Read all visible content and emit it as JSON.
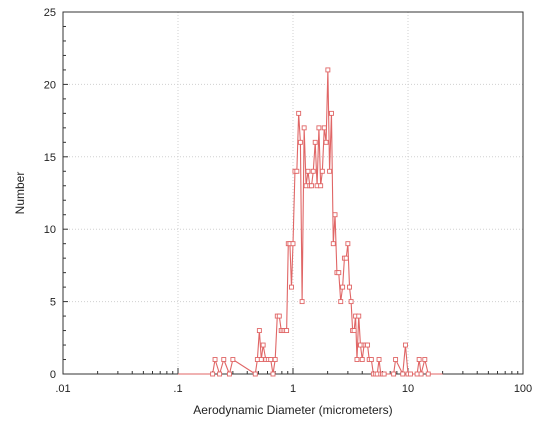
{
  "chart_data": {
    "type": "line",
    "title": "",
    "xlabel": "Aerodynamic Diameter (micrometers)",
    "ylabel": "Number",
    "x_scale": "log",
    "xlim": [
      0.01,
      100
    ],
    "ylim": [
      0,
      25
    ],
    "x_ticks": [
      ".01",
      ".1",
      "1",
      "10",
      "100"
    ],
    "y_ticks": [
      "0",
      "5",
      "10",
      "15",
      "20",
      "25"
    ],
    "grid": true,
    "legend": "none",
    "series_color": "#e06666",
    "series": [
      {
        "x": [
          0.1,
          0.2,
          0.21,
          0.23,
          0.25,
          0.28,
          0.3,
          0.47,
          0.49,
          0.51,
          0.53,
          0.55,
          0.58,
          0.61,
          0.64,
          0.67,
          0.7,
          0.73,
          0.76,
          0.79,
          0.82,
          0.85,
          0.88,
          0.91,
          0.94,
          0.97,
          1.0,
          1.04,
          1.08,
          1.12,
          1.16,
          1.2,
          1.25,
          1.3,
          1.35,
          1.4,
          1.45,
          1.5,
          1.56,
          1.62,
          1.68,
          1.74,
          1.8,
          1.87,
          1.94,
          2.01,
          2.08,
          2.16,
          2.24,
          2.32,
          2.41,
          2.5,
          2.6,
          2.7,
          2.8,
          2.9,
          3.0,
          3.1,
          3.2,
          3.3,
          3.4,
          3.5,
          3.6,
          3.73,
          3.86,
          4.0,
          4.15,
          4.3,
          4.45,
          4.6,
          4.8,
          5.0,
          5.2,
          5.4,
          5.6,
          5.8,
          6.0,
          6.2,
          7.5,
          7.8,
          9.0,
          9.5,
          10.0,
          10.5,
          12.0,
          12.5,
          13.0,
          14.0,
          15.0,
          20.0
        ],
        "y": [
          0,
          0,
          1,
          0,
          1,
          0,
          1,
          0,
          1,
          3,
          1,
          2,
          1,
          1,
          1,
          0,
          1,
          4,
          4,
          3,
          3,
          3,
          3,
          9,
          9,
          6,
          9,
          14,
          14,
          18,
          16,
          5,
          17,
          13,
          14,
          13,
          13,
          14,
          16,
          13,
          17,
          13,
          14,
          17,
          16,
          21,
          14,
          18,
          9,
          11,
          7,
          7,
          5,
          6,
          8,
          8,
          9,
          6,
          5,
          3,
          3,
          4,
          1,
          4,
          2,
          1,
          2,
          2,
          2,
          1,
          1,
          0,
          0,
          0,
          1,
          0,
          0,
          0,
          0,
          1,
          0,
          2,
          0,
          0,
          0,
          1,
          0,
          1,
          0,
          0
        ]
      }
    ]
  }
}
